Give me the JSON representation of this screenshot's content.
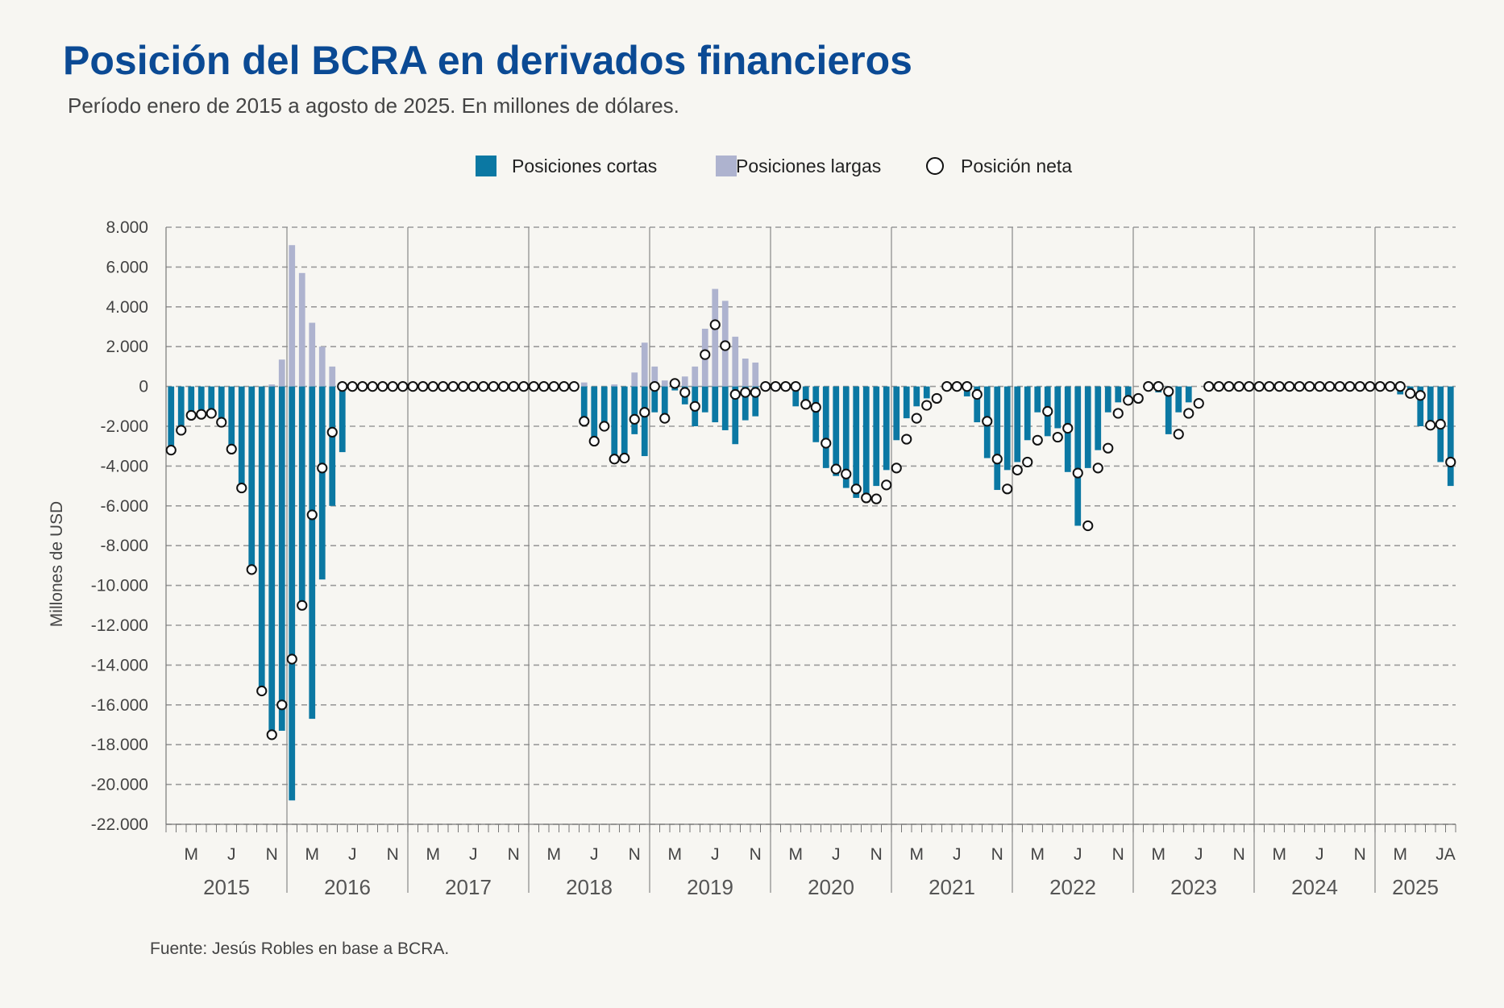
{
  "header": {
    "title": "Posición del BCRA en derivados financieros",
    "subtitle": "Período enero de 2015 a agosto de 2025. En millones de dólares."
  },
  "footer": {
    "source": "Fuente: Jesús Robles en base a BCRA."
  },
  "colors": {
    "short": "#0b78a3",
    "long": "#aeb3cf",
    "net_fill": "#ffffff",
    "net_stroke": "#111111",
    "title": "#0b4a94"
  },
  "chart_data": {
    "type": "bar",
    "title": "Posición del BCRA en derivados financieros",
    "subtitle": "Período enero de 2015 a agosto de 2025. En millones de dólares.",
    "ylabel": "Millones de USD",
    "xlabel": "",
    "ylim": [
      -22000,
      8000
    ],
    "yticks": [
      8000,
      6000,
      4000,
      2000,
      0,
      -2000,
      -4000,
      -6000,
      -8000,
      -10000,
      -12000,
      -14000,
      -16000,
      -18000,
      -20000,
      -22000
    ],
    "ytick_labels": [
      "8.000",
      "6.000",
      "4.000",
      "2.000",
      "0",
      "-2.000",
      "-4.000",
      "-6.000",
      "-8.000",
      "-10.000",
      "-12.000",
      "-14.000",
      "-16.000",
      "-18.000",
      "-20.000",
      "-22.000"
    ],
    "grid": "horizontal dashed",
    "legend": {
      "position": "top-center",
      "entries": [
        "Posiciones cortas",
        "Posiciones largas",
        "Posición neta"
      ]
    },
    "start": "2015-01",
    "end": "2025-08",
    "years": [
      "2015",
      "2016",
      "2017",
      "2018",
      "2019",
      "2020",
      "2021",
      "2022",
      "2023",
      "2024",
      "2025"
    ],
    "month_tick_labels": [
      "M",
      "J",
      "N"
    ],
    "last_year_tick_labels": [
      "M",
      "JA"
    ],
    "series": [
      {
        "name": "Posiciones cortas",
        "type": "bar",
        "values": [
          -3200,
          -2200,
          -1500,
          -1450,
          -1400,
          -1850,
          -3200,
          -5100,
          -9200,
          -15300,
          -17400,
          -17300,
          -20800,
          -11000,
          -16700,
          -9700,
          -6000,
          -3300,
          0,
          0,
          0,
          0,
          0,
          0,
          0,
          0,
          0,
          0,
          0,
          0,
          0,
          0,
          0,
          0,
          0,
          0,
          0,
          0,
          0,
          0,
          0,
          -1800,
          -2700,
          -2000,
          -3600,
          -3600,
          -2400,
          -3500,
          -1300,
          -1600,
          -200,
          -900,
          -2000,
          -1300,
          -1800,
          -2200,
          -2900,
          -1700,
          -1500,
          0,
          0,
          0,
          -1000,
          -1100,
          -2800,
          -4100,
          -4500,
          -5100,
          -5600,
          -5600,
          -5000,
          -4200,
          -2700,
          -1600,
          -1000,
          -600,
          0,
          0,
          0,
          -500,
          -1800,
          -3600,
          -5200,
          -4200,
          -3800,
          -2700,
          -1300,
          -2500,
          -2100,
          -4300,
          -7000,
          -4100,
          -3200,
          -1300,
          -800,
          -600,
          0,
          0,
          -300,
          -2400,
          -1300,
          -800,
          0,
          0,
          0,
          0,
          0,
          0,
          0,
          0,
          0,
          0,
          0,
          0,
          0,
          0,
          0,
          0,
          0,
          0,
          0,
          0,
          -400,
          -500,
          -2000,
          -1900,
          -3800,
          -5000
        ]
      },
      {
        "name": "Posiciones largas",
        "type": "bar",
        "values": [
          0,
          0,
          0,
          0,
          0,
          0,
          0,
          0,
          0,
          0,
          100,
          1350,
          7100,
          5700,
          3200,
          2000,
          1000,
          0,
          0,
          0,
          0,
          0,
          0,
          0,
          0,
          0,
          0,
          0,
          0,
          0,
          0,
          0,
          0,
          0,
          0,
          0,
          0,
          0,
          0,
          0,
          0,
          200,
          0,
          0,
          100,
          0,
          700,
          2200,
          1000,
          300,
          200,
          500,
          1000,
          2900,
          4900,
          4300,
          2500,
          1400,
          1200,
          0,
          0,
          0,
          0,
          0,
          0,
          0,
          0,
          0,
          0,
          0,
          0,
          0,
          0,
          0,
          0,
          0,
          0,
          0,
          0,
          0,
          0,
          0,
          0,
          0,
          0,
          0,
          0,
          0,
          0,
          0,
          0,
          0,
          0,
          0,
          0,
          0,
          0,
          0,
          0,
          0,
          0,
          0,
          0,
          0,
          0,
          0,
          0,
          0,
          0,
          0,
          0,
          0,
          0,
          0,
          0,
          0,
          0,
          0,
          0,
          0,
          0,
          0,
          0,
          0,
          0,
          0,
          0,
          0
        ]
      },
      {
        "name": "Posición neta",
        "type": "scatter",
        "values": [
          -3200,
          -2200,
          -1450,
          -1400,
          -1350,
          -1800,
          -3150,
          -5100,
          -9200,
          -15300,
          -17500,
          -16000,
          -13700,
          -11000,
          -6450,
          -4100,
          -2300,
          0,
          0,
          0,
          0,
          0,
          0,
          0,
          0,
          0,
          0,
          0,
          0,
          0,
          0,
          0,
          0,
          0,
          0,
          0,
          0,
          0,
          0,
          0,
          0,
          -1750,
          -2750,
          -2000,
          -3650,
          -3600,
          -1650,
          -1300,
          0,
          -1600,
          150,
          -300,
          -1000,
          1600,
          3100,
          2050,
          -400,
          -300,
          -300,
          0,
          0,
          0,
          0,
          -900,
          -1050,
          -2850,
          -4150,
          -4400,
          -5150,
          -5600,
          -5650,
          -4950,
          -4100,
          -2650,
          -1600,
          -950,
          -600,
          0,
          0,
          0,
          -400,
          -1750,
          -3650,
          -5150,
          -4200,
          -3800,
          -2700,
          -1250,
          -2550,
          -2100,
          -4350,
          -7000,
          -4100,
          -3100,
          -1350,
          -700,
          -600,
          0,
          0,
          -250,
          -2400,
          -1350,
          -850,
          0,
          0,
          0,
          0,
          0,
          0,
          0,
          0,
          0,
          0,
          0,
          0,
          0,
          0,
          0,
          0,
          0,
          0,
          0,
          0,
          -350,
          -450,
          -1950,
          -1900,
          -3800,
          -5050
        ]
      }
    ]
  }
}
